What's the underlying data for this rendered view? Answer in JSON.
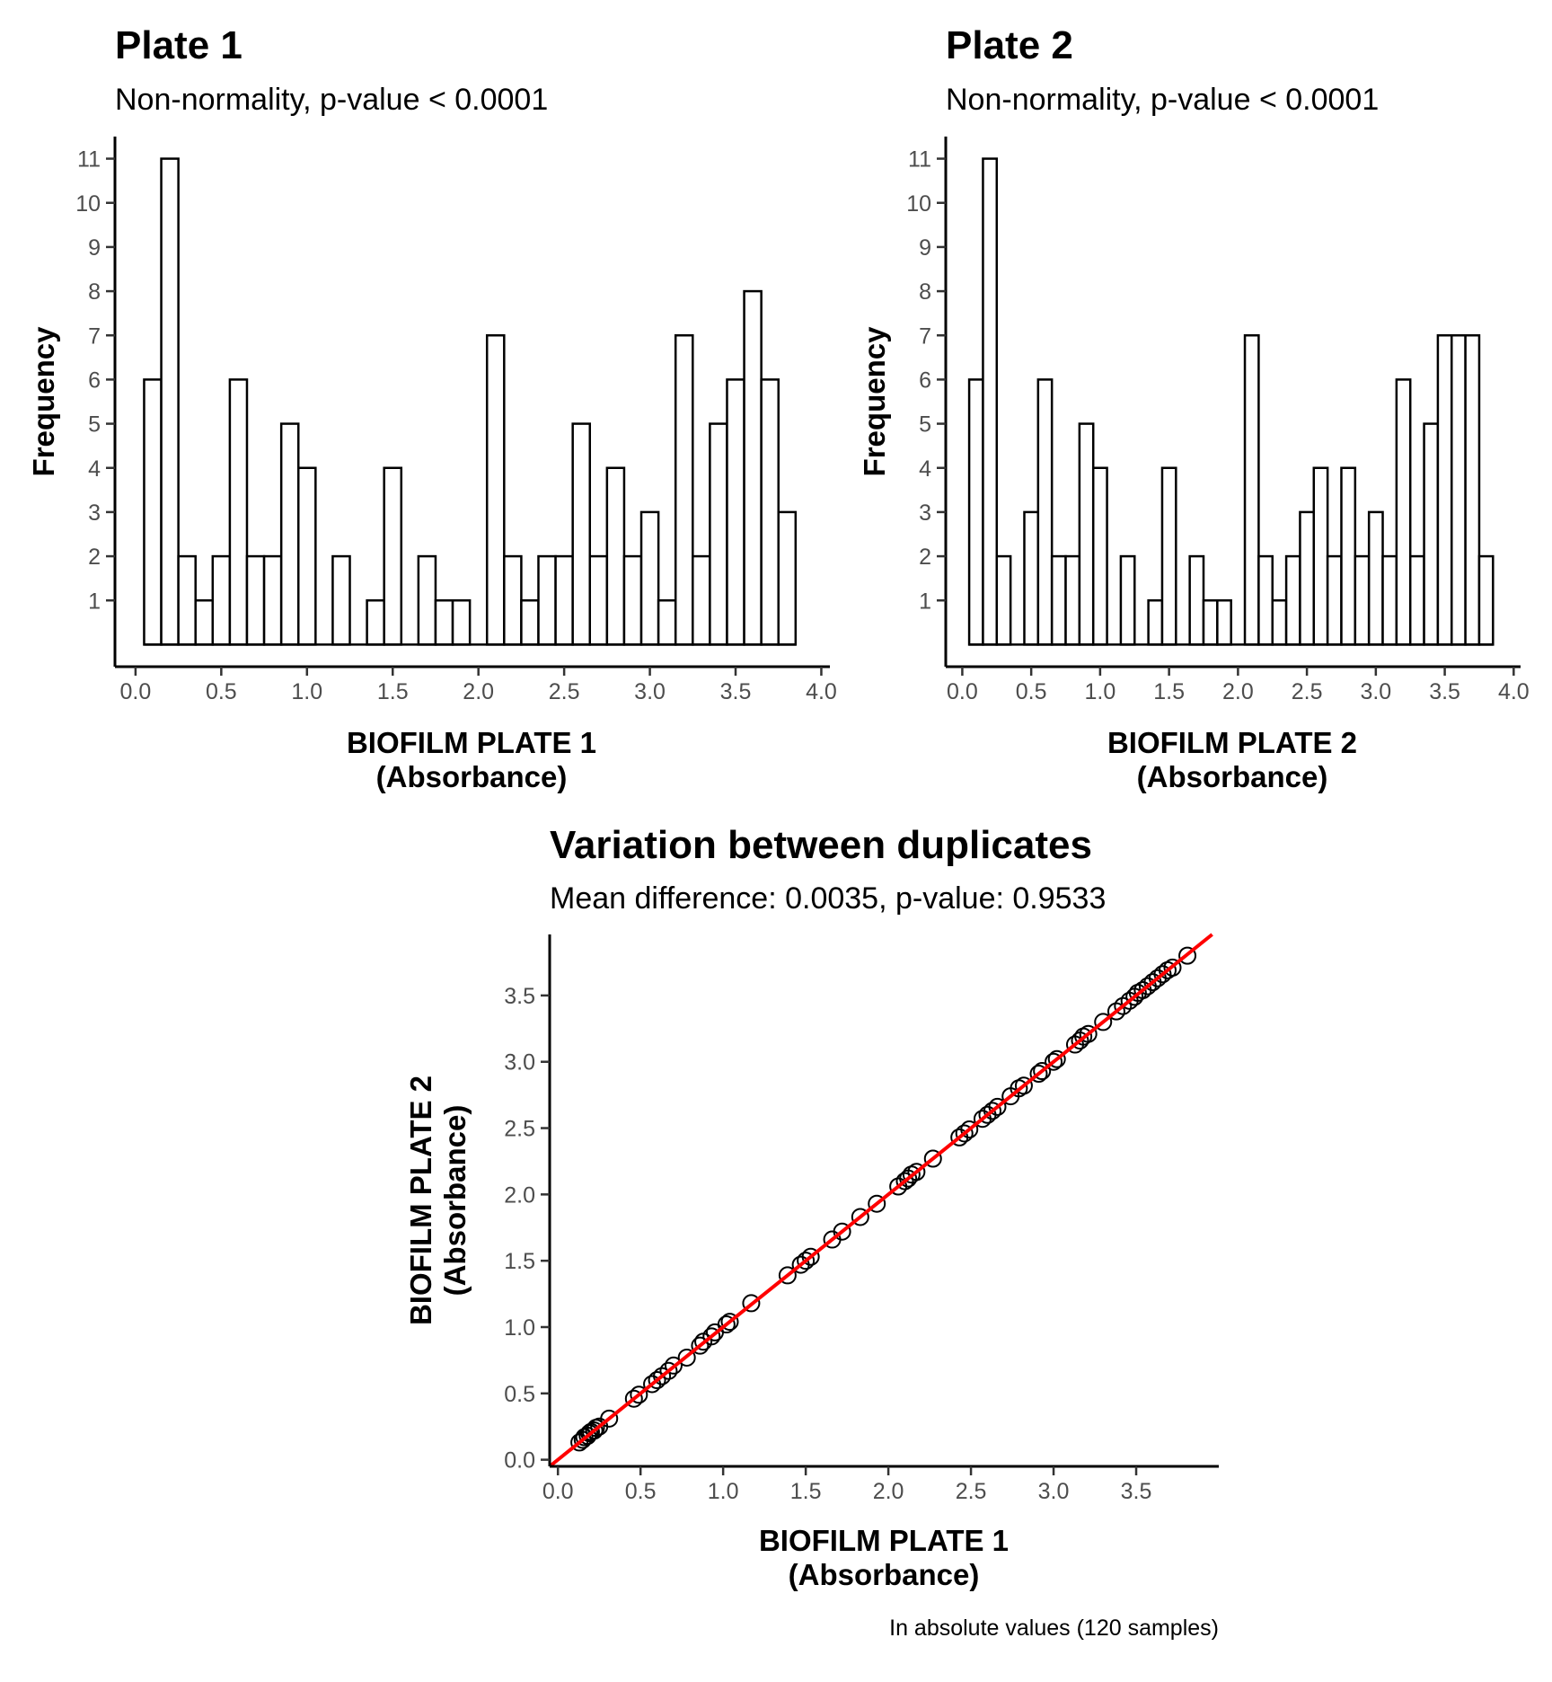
{
  "chart_data": [
    {
      "type": "bar",
      "title": "Plate 1",
      "subtitle": "Non-normality, p-value < 0.0001",
      "xlabel": [
        "BIOFILM PLATE 1",
        "(Absorbance)"
      ],
      "ylabel": "Frequency",
      "xlim": [
        -0.12,
        4.05
      ],
      "ylim": [
        -0.5,
        11.5
      ],
      "xticks": [
        "0.0",
        "0.5",
        "1.0",
        "1.5",
        "2.0",
        "2.5",
        "3.0",
        "3.5",
        "4.0"
      ],
      "yticks": [
        "1",
        "2",
        "3",
        "4",
        "5",
        "6",
        "7",
        "8",
        "9",
        "10",
        "11"
      ],
      "bin_start": 0.05,
      "bin_width": 0.1,
      "counts": [
        6,
        11,
        2,
        1,
        2,
        6,
        2,
        2,
        5,
        4,
        0,
        2,
        0,
        1,
        4,
        0,
        2,
        1,
        1,
        0,
        7,
        2,
        1,
        2,
        2,
        5,
        2,
        4,
        2,
        3,
        1,
        7,
        2,
        5,
        6,
        8,
        6,
        3
      ],
      "grid": false
    },
    {
      "type": "bar",
      "title": "Plate 2",
      "subtitle": "Non-normality, p-value < 0.0001",
      "xlabel": [
        "BIOFILM PLATE 2",
        "(Absorbance)"
      ],
      "ylabel": "Frequency",
      "xlim": [
        -0.12,
        4.05
      ],
      "ylim": [
        -0.5,
        11.5
      ],
      "xticks": [
        "0.0",
        "0.5",
        "1.0",
        "1.5",
        "2.0",
        "2.5",
        "3.0",
        "3.5",
        "4.0"
      ],
      "yticks": [
        "1",
        "2",
        "3",
        "4",
        "5",
        "6",
        "7",
        "8",
        "9",
        "10",
        "11"
      ],
      "bin_start": 0.05,
      "bin_width": 0.1,
      "counts": [
        6,
        11,
        2,
        0,
        3,
        6,
        2,
        2,
        5,
        4,
        0,
        2,
        0,
        1,
        4,
        0,
        2,
        1,
        1,
        0,
        7,
        2,
        1,
        2,
        3,
        4,
        2,
        4,
        2,
        3,
        2,
        6,
        2,
        5,
        7,
        7,
        7,
        2
      ],
      "grid": false
    },
    {
      "type": "scatter",
      "title": "Variation between duplicates",
      "subtitle": "Mean difference: 0.0035, p-value: 0.9533",
      "xlabel": [
        "BIOFILM PLATE 1",
        "(Absorbance)"
      ],
      "ylabel": [
        "BIOFILM PLATE 2",
        "(Absorbance)"
      ],
      "caption": "In absolute values (120 samples)",
      "xlim": [
        -0.05,
        4.0
      ],
      "ylim": [
        -0.05,
        3.96
      ],
      "xticks": [
        "0.0",
        "0.5",
        "1.0",
        "1.5",
        "2.0",
        "2.5",
        "3.0",
        "3.5"
      ],
      "yticks": [
        "0.0",
        "0.5",
        "1.0",
        "1.5",
        "2.0",
        "2.5",
        "3.0",
        "3.5"
      ],
      "line": {
        "slope": 1,
        "intercept": 0,
        "color": "#ff0000"
      },
      "x": [
        0.13,
        0.15,
        0.16,
        0.18,
        0.19,
        0.2,
        0.22,
        0.23,
        0.25,
        0.31,
        0.46,
        0.49,
        0.57,
        0.6,
        0.63,
        0.67,
        0.7,
        0.78,
        0.86,
        0.88,
        0.93,
        0.95,
        1.02,
        1.04,
        1.17,
        1.39,
        1.47,
        1.5,
        1.53,
        1.66,
        1.72,
        1.83,
        1.93,
        2.06,
        2.1,
        2.12,
        2.14,
        2.17,
        2.27,
        2.43,
        2.46,
        2.49,
        2.57,
        2.6,
        2.63,
        2.66,
        2.74,
        2.79,
        2.82,
        2.91,
        2.93,
        3.0,
        3.02,
        3.13,
        3.16,
        3.18,
        3.21,
        3.3,
        3.38,
        3.42,
        3.46,
        3.49,
        3.51,
        3.54,
        3.57,
        3.6,
        3.63,
        3.66,
        3.69,
        3.72,
        3.81
      ],
      "y": [
        0.13,
        0.15,
        0.17,
        0.18,
        0.2,
        0.21,
        0.22,
        0.24,
        0.25,
        0.31,
        0.46,
        0.49,
        0.57,
        0.6,
        0.63,
        0.67,
        0.71,
        0.77,
        0.86,
        0.89,
        0.93,
        0.96,
        1.02,
        1.04,
        1.18,
        1.39,
        1.47,
        1.5,
        1.53,
        1.66,
        1.72,
        1.83,
        1.93,
        2.06,
        2.1,
        2.12,
        2.15,
        2.17,
        2.27,
        2.43,
        2.46,
        2.49,
        2.57,
        2.6,
        2.63,
        2.66,
        2.74,
        2.8,
        2.82,
        2.91,
        2.93,
        3.0,
        3.02,
        3.13,
        3.16,
        3.19,
        3.21,
        3.3,
        3.38,
        3.42,
        3.46,
        3.49,
        3.52,
        3.54,
        3.57,
        3.6,
        3.63,
        3.66,
        3.69,
        3.71,
        3.8
      ],
      "grid": false
    }
  ]
}
